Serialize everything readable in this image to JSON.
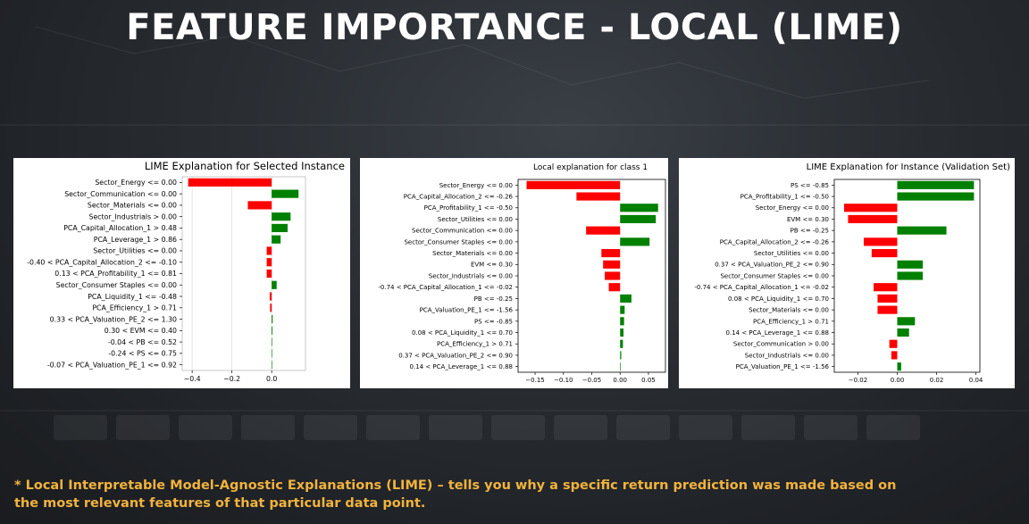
{
  "slide": {
    "title": "FEATURE IMPORTANCE - LOCAL (LIME)",
    "footnote": "* Local Interpretable Model-Agnostic Explanations (LIME) – tells you why a specific return prediction was made based on the most relevant features of that particular data point."
  },
  "colors": {
    "positive": "#008000",
    "negative": "#ff0000"
  },
  "chart_data": [
    {
      "type": "bar",
      "orientation": "horizontal",
      "title": "LIME Explanation for Selected Instance",
      "categories": [
        "Sector_Energy <= 0.00",
        "Sector_Communication <= 0.00",
        "Sector_Materials <= 0.00",
        "Sector_Industrials > 0.00",
        "PCA_Capital_Allocation_1 > 0.48",
        "PCA_Leverage_1 > 0.86",
        "Sector_Utilities <= 0.00",
        "-0.40 < PCA_Capital_Allocation_2 <= -0.10",
        "0.13 < PCA_Profitability_1 <= 0.81",
        "Sector_Consumer Staples <= 0.00",
        "PCA_Liquidity_1 <= -0.48",
        "PCA_Efficiency_1 > 0.71",
        "0.33 < PCA_Valuation_PE_2 <= 1.30",
        "0.30 < EVM <= 0.40",
        "-0.04 < PB <= 0.52",
        "-0.24 < PS <= 0.75",
        "-0.07 < PCA_Valuation_PE_1 <= 0.92"
      ],
      "values": [
        -0.42,
        0.135,
        -0.12,
        0.095,
        0.08,
        0.045,
        -0.025,
        -0.025,
        -0.025,
        0.025,
        -0.01,
        -0.008,
        0.005,
        0.004,
        0.002,
        0.002,
        0.001
      ],
      "xlim": [
        -0.45,
        0.17
      ],
      "xticks": [
        -0.4,
        -0.2,
        0.0
      ],
      "xtick_labels": [
        "−0.4",
        "−0.2",
        "0.0"
      ],
      "grid": true
    },
    {
      "type": "bar",
      "orientation": "horizontal",
      "title": "Local explanation for class 1",
      "categories": [
        "Sector_Energy <= 0.00",
        "PCA_Capital_Allocation_2 <= -0.26",
        "PCA_Profitability_1 <= -0.50",
        "Sector_Utilities <= 0.00",
        "Sector_Communication <= 0.00",
        "Sector_Consumer Staples <= 0.00",
        "Sector_Materials <= 0.00",
        "EVM <= 0.30",
        "Sector_Industrials <= 0.00",
        "-0.74 < PCA_Capital_Allocation_1 <= -0.02",
        "PB <= -0.25",
        "PCA_Valuation_PE_1 <= -1.56",
        "PS <= -0.85",
        "0.08 < PCA_Liquidity_1 <= 0.70",
        "PCA_Efficiency_1 > 0.71",
        "0.37 < PCA_Valuation_PE_2 <= 0.90",
        "0.14 < PCA_Leverage_1 <= 0.88"
      ],
      "values": [
        -0.165,
        -0.077,
        0.067,
        0.063,
        -0.06,
        0.052,
        -0.033,
        -0.03,
        -0.027,
        -0.02,
        0.02,
        0.008,
        0.007,
        0.006,
        0.005,
        0.002,
        0.001
      ],
      "xlim": [
        -0.18,
        0.08
      ],
      "xticks": [
        -0.15,
        -0.1,
        -0.05,
        0.0,
        0.05
      ],
      "xtick_labels": [
        "−0.15",
        "−0.10",
        "−0.05",
        "0.00",
        "0.05"
      ],
      "grid": false
    },
    {
      "type": "bar",
      "orientation": "horizontal",
      "title": "LIME Explanation for Instance (Validation Set)",
      "categories": [
        "PS <= -0.85",
        "PCA_Profitability_1 <= -0.50",
        "Sector_Energy <= 0.00",
        "EVM <= 0.30",
        "PB <= -0.25",
        "PCA_Capital_Allocation_2 <= -0.26",
        "Sector_Utilities <= 0.00",
        "0.37 < PCA_Valuation_PE_2 <= 0.90",
        "Sector_Consumer Staples <= 0.00",
        "-0.74 < PCA_Capital_Allocation_1 <= -0.02",
        "0.08 < PCA_Liquidity_1 <= 0.70",
        "Sector_Materials <= 0.00",
        "PCA_Efficiency_1 > 0.71",
        "0.14 < PCA_Leverage_1 <= 0.88",
        "Sector_Communication > 0.00",
        "Sector_Industrials <= 0.00",
        "PCA_Valuation_PE_1 <= -1.56"
      ],
      "values": [
        0.039,
        0.039,
        -0.027,
        -0.025,
        0.025,
        -0.017,
        -0.013,
        0.013,
        0.013,
        -0.012,
        -0.01,
        -0.01,
        0.009,
        0.006,
        -0.004,
        -0.003,
        0.002
      ],
      "xlim": [
        -0.032,
        0.042
      ],
      "xticks": [
        -0.02,
        0.0,
        0.02,
        0.04
      ],
      "xtick_labels": [
        "−0.02",
        "0.00",
        "0.02",
        "0.04"
      ],
      "grid": false
    }
  ]
}
